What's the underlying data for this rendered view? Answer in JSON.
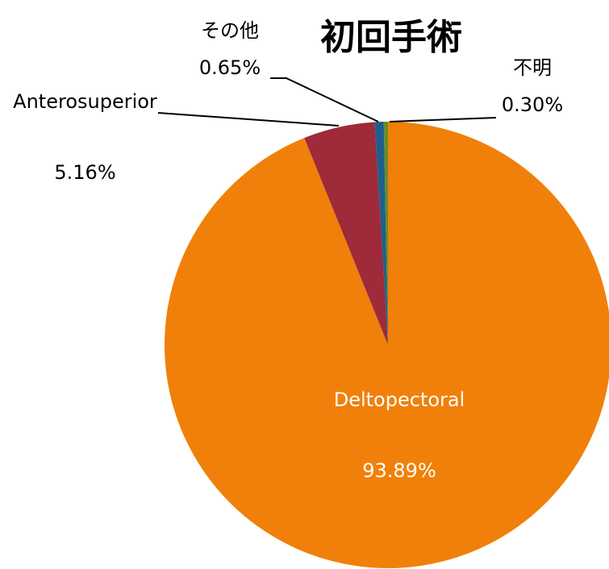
{
  "chart_data": {
    "type": "pie",
    "title": "初回手術",
    "categories": [
      "Deltopectoral",
      "Anterosuperior",
      "その他",
      "不明"
    ],
    "values": [
      93.89,
      5.16,
      0.65,
      0.3
    ],
    "value_labels": [
      "93.89%",
      "5.16%",
      "0.65%",
      "0.30%"
    ],
    "colors": [
      "#f0800a",
      "#9e2a3a",
      "#1f5f8b",
      "#6a8c2a"
    ]
  }
}
